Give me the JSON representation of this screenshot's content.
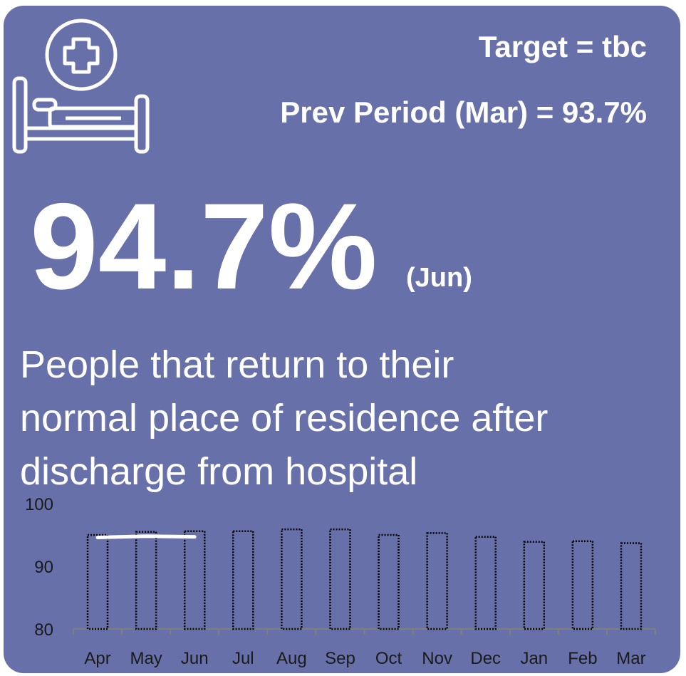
{
  "header": {
    "target": "Target = tbc",
    "previous": "Prev Period (Mar) = 93.7%",
    "headline": "94.7%",
    "headline_period": "(Jun)",
    "description": [
      "People that return to their",
      "normal place of residence after",
      "discharge from hospital"
    ]
  },
  "chart_data": {
    "type": "bar",
    "categories": [
      "Apr",
      "May",
      "Jun",
      "Jul",
      "Aug",
      "Sep",
      "Oct",
      "Nov",
      "Dec",
      "Jan",
      "Feb",
      "Mar"
    ],
    "series": [
      {
        "type": "bar",
        "color": "#000000",
        "values": [
          95.0,
          95.5,
          95.6,
          95.6,
          95.9,
          95.9,
          95.0,
          95.3,
          94.7,
          93.9,
          94.0,
          93.7
        ]
      },
      {
        "type": "line",
        "color": "#ffffff",
        "values": [
          94.6,
          94.8,
          94.7,
          null,
          null,
          null,
          null,
          null,
          null,
          null,
          null,
          null
        ]
      }
    ],
    "ylim": [
      80,
      100
    ],
    "yticks": [
      80,
      90,
      100
    ]
  }
}
